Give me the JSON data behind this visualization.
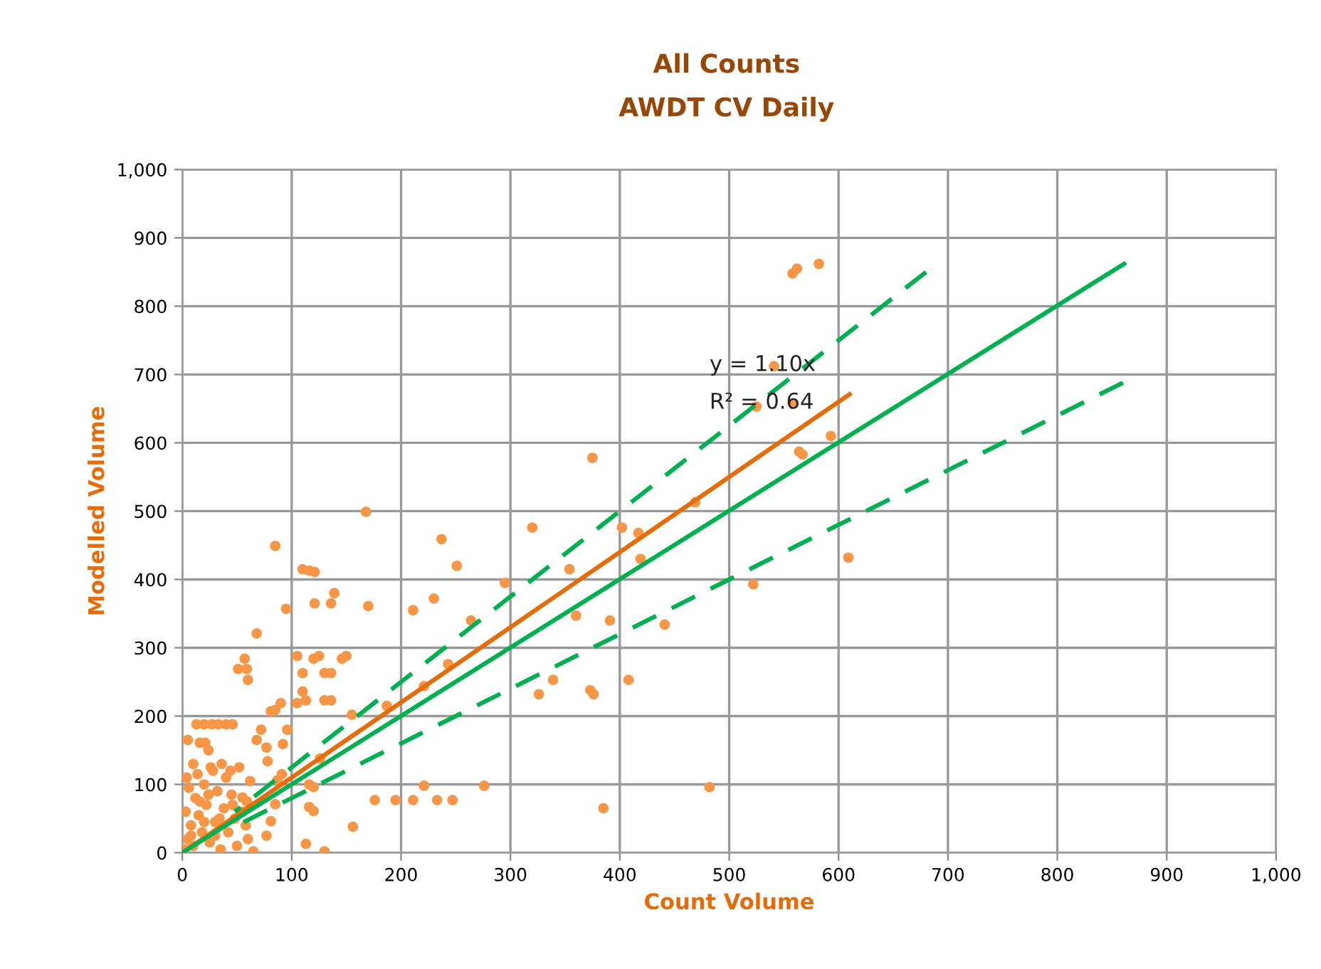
{
  "chart_data": {
    "type": "scatter",
    "title": "All Counts",
    "subtitle": "AWDT CV Daily",
    "xlabel": "Count Volume",
    "ylabel": "Modelled Volume",
    "xlim": [
      0,
      1000
    ],
    "ylim": [
      0,
      1000
    ],
    "xticks": [
      0,
      100,
      200,
      300,
      400,
      500,
      600,
      700,
      800,
      900,
      {
        "value": 1000,
        "label": "1,000"
      }
    ],
    "yticks": [
      0,
      100,
      200,
      300,
      400,
      500,
      600,
      700,
      800,
      900,
      {
        "value": 1000,
        "label": "1,000"
      }
    ],
    "grid": true,
    "annotations": [
      "y = 1.10x",
      "R² = 0.64"
    ],
    "series": [
      {
        "marker": "circle",
        "color": "#f79646",
        "x": [
          562,
          558,
          582,
          541,
          525,
          558,
          593,
          564,
          567,
          609,
          522,
          469,
          375,
          402,
          417,
          419,
          320,
          237,
          251,
          295,
          354,
          211,
          230,
          264,
          360,
          391,
          441,
          243,
          221,
          326,
          339,
          373,
          376,
          408,
          385,
          482,
          168,
          85,
          110,
          116,
          121,
          139,
          136,
          121,
          95,
          170,
          68,
          57,
          51,
          59,
          60,
          105,
          120,
          125,
          146,
          150,
          110,
          130,
          136,
          110,
          105,
          113,
          130,
          136,
          90,
          81,
          85,
          155,
          187,
          96,
          92,
          72,
          68,
          77,
          78,
          13,
          20,
          27,
          33,
          40,
          46,
          5,
          16,
          21,
          24,
          126,
          91,
          87,
          116,
          120,
          176,
          195,
          211,
          233,
          247,
          221,
          276,
          116,
          120,
          85,
          156,
          113,
          130,
          65,
          81,
          77,
          55,
          59,
          2,
          5,
          8,
          3,
          10,
          12,
          15,
          18,
          20,
          22,
          25,
          28,
          30,
          32,
          35,
          38,
          40,
          42,
          45,
          48,
          50,
          52,
          55,
          6,
          10,
          14,
          26,
          36,
          44,
          24,
          16,
          30,
          46,
          58,
          60,
          62,
          34,
          20,
          8,
          4
        ],
        "values": [
          855,
          848,
          862,
          712,
          653,
          658,
          610,
          587,
          583,
          432,
          393,
          513,
          578,
          476,
          468,
          430,
          476,
          459,
          420,
          395,
          415,
          355,
          372,
          340,
          347,
          340,
          334,
          276,
          244,
          232,
          253,
          238,
          232,
          253,
          65,
          96,
          499,
          449,
          415,
          413,
          411,
          380,
          365,
          365,
          357,
          361,
          321,
          284,
          269,
          269,
          253,
          288,
          284,
          288,
          284,
          288,
          263,
          263,
          263,
          236,
          219,
          223,
          223,
          223,
          219,
          207,
          209,
          202,
          215,
          180,
          159,
          180,
          165,
          154,
          134,
          188,
          188,
          188,
          188,
          188,
          188,
          165,
          161,
          161,
          150,
          138,
          115,
          106,
          100,
          96,
          77,
          77,
          77,
          77,
          77,
          98,
          98,
          67,
          61,
          71,
          38,
          13,
          2,
          2,
          46,
          25,
          81,
          75,
          5,
          20,
          40,
          60,
          10,
          80,
          55,
          30,
          100,
          70,
          15,
          120,
          45,
          90,
          5,
          65,
          110,
          30,
          85,
          50,
          10,
          125,
          60,
          95,
          130,
          115,
          125,
          130,
          120,
          85,
          75,
          25,
          70,
          40,
          20,
          105,
          50,
          45,
          25,
          110
        ]
      },
      {
        "type": "line",
        "color": "#e46c0a",
        "line_style": "solid",
        "x": [
          0,
          610
        ],
        "values": [
          0,
          671
        ]
      },
      {
        "type": "line",
        "color": "#00b050",
        "line_style": "solid",
        "x": [
          0,
          861
        ],
        "values": [
          0,
          862
        ]
      },
      {
        "type": "line",
        "color": "#00b050",
        "line_style": "dashed",
        "x": [
          48,
          680
        ],
        "values": [
          60,
          850
        ]
      },
      {
        "type": "line",
        "color": "#00b050",
        "line_style": "dashed",
        "x": [
          45,
          860
        ],
        "values": [
          36,
          688
        ]
      }
    ]
  }
}
